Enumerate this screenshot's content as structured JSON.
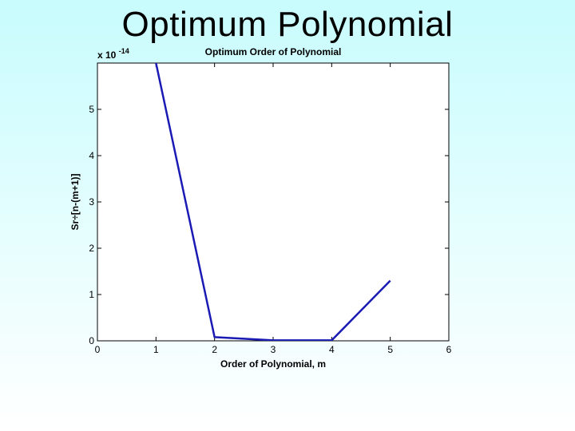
{
  "slide": {
    "title": "Optimum Polynomial"
  },
  "chart_data": {
    "type": "line",
    "title": "Optimum Order of Polynomial",
    "xlabel": "Order of Polynomial, m",
    "ylabel": "Sr÷[n-(m+1)]",
    "y_multiplier_base": "x 10",
    "y_multiplier_exponent": "-14",
    "xlim": [
      0,
      6
    ],
    "ylim": [
      0,
      6
    ],
    "x_ticks": [
      0,
      1,
      2,
      3,
      4,
      5,
      6
    ],
    "y_ticks": [
      0,
      1,
      2,
      3,
      4,
      5
    ],
    "grid": false,
    "line_color": "#1a1ab4",
    "series": [
      {
        "x": [
          1,
          2,
          3,
          4,
          5
        ],
        "values": [
          6.0,
          0.08,
          0.01,
          0.01,
          1.3
        ]
      }
    ]
  }
}
